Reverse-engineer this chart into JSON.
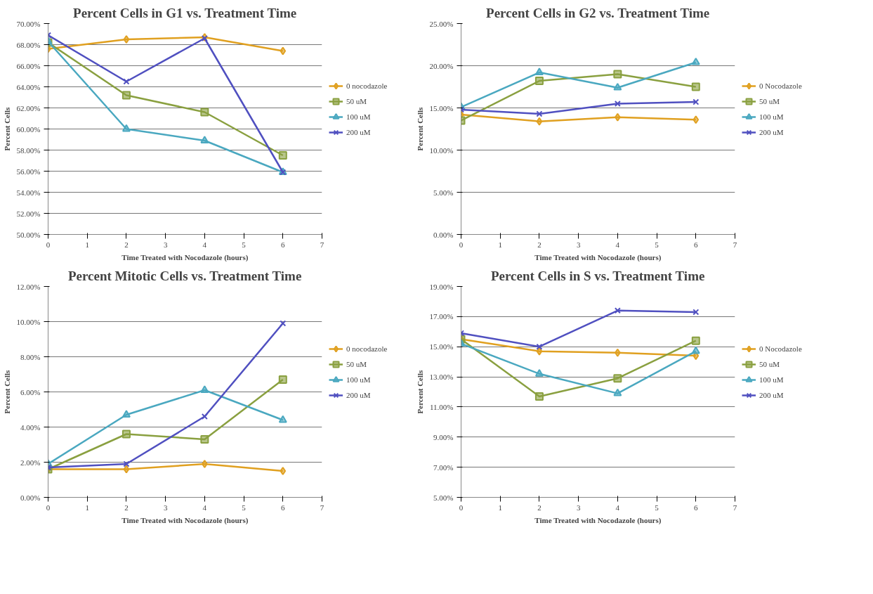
{
  "chart_data": [
    {
      "type": "line",
      "title": "Percent Cells in G1 vs. Treatment Time",
      "xlabel": "Time Treated with Nocodazole (hours)",
      "ylabel": "Percent Cells",
      "x": [
        0,
        2,
        4,
        6
      ],
      "xlim": [
        0,
        7
      ],
      "xticks": [
        0,
        1,
        2,
        3,
        4,
        5,
        6,
        7
      ],
      "ylim": [
        50,
        70
      ],
      "yticks": [
        {
          "value": 50,
          "label": "50.00%"
        },
        {
          "value": 52,
          "label": "52.00%"
        },
        {
          "value": 54,
          "label": "54.00%"
        },
        {
          "value": 56,
          "label": "56.00%"
        },
        {
          "value": 58,
          "label": "58.00%"
        },
        {
          "value": 60,
          "label": "60.00%"
        },
        {
          "value": 62,
          "label": "62.00%"
        },
        {
          "value": 64,
          "label": "64.00%"
        },
        {
          "value": 66,
          "label": "66.00%"
        },
        {
          "value": 68,
          "label": "68.00%"
        },
        {
          "value": 70,
          "label": "70.00%"
        }
      ],
      "grid": "y",
      "legend": "right",
      "series": [
        {
          "name": "0 nocodazole",
          "color": "#e0a020",
          "marker": "diamond",
          "values": [
            67.6,
            68.5,
            68.7,
            67.4
          ]
        },
        {
          "name": "50 uM",
          "color": "#8aa040",
          "marker": "square",
          "values": [
            68.2,
            63.2,
            61.6,
            57.5
          ]
        },
        {
          "name": "100 uM",
          "color": "#4aa8c0",
          "marker": "triangle",
          "values": [
            68.3,
            60.0,
            58.9,
            55.9
          ]
        },
        {
          "name": "200 uM",
          "color": "#5050c0",
          "marker": "cross",
          "values": [
            68.9,
            64.5,
            68.6,
            55.9
          ]
        }
      ]
    },
    {
      "type": "line",
      "title": "Percent Cells in G2 vs. Treatment Time",
      "xlabel": "Time Treated with Nocodazole (hours)",
      "ylabel": "Percent Cells",
      "x": [
        0,
        2,
        4,
        6
      ],
      "xlim": [
        0,
        7
      ],
      "xticks": [
        0,
        1,
        2,
        3,
        4,
        5,
        6,
        7
      ],
      "ylim": [
        0,
        25
      ],
      "yticks": [
        {
          "value": 0,
          "label": "0.00%"
        },
        {
          "value": 5,
          "label": "5.00%"
        },
        {
          "value": 10,
          "label": "10.00%"
        },
        {
          "value": 15,
          "label": "15.00%"
        },
        {
          "value": 20,
          "label": "20.00%"
        },
        {
          "value": 25,
          "label": "25.00%"
        }
      ],
      "grid": "y",
      "legend": "right",
      "series": [
        {
          "name": "0 Nocodazole",
          "color": "#e0a020",
          "marker": "diamond",
          "values": [
            14.2,
            13.4,
            13.9,
            13.6
          ]
        },
        {
          "name": "50 uM",
          "color": "#8aa040",
          "marker": "square",
          "values": [
            13.5,
            18.2,
            19.0,
            17.5
          ]
        },
        {
          "name": "100 uM",
          "color": "#4aa8c0",
          "marker": "triangle",
          "values": [
            15.1,
            19.2,
            17.4,
            20.4
          ]
        },
        {
          "name": "200 uM",
          "color": "#5050c0",
          "marker": "cross",
          "values": [
            14.8,
            14.3,
            15.5,
            15.7
          ]
        }
      ]
    },
    {
      "type": "line",
      "title": "Percent Mitotic Cells vs. Treatment Time",
      "xlabel": "Time Treated with Nocodazole (hours)",
      "ylabel": "Percent Cells",
      "x": [
        0,
        2,
        4,
        6
      ],
      "xlim": [
        0,
        7
      ],
      "xticks": [
        0,
        1,
        2,
        3,
        4,
        5,
        6,
        7
      ],
      "ylim": [
        0,
        12
      ],
      "yticks": [
        {
          "value": 0,
          "label": "0.00%"
        },
        {
          "value": 2,
          "label": "2.00%"
        },
        {
          "value": 4,
          "label": "4.00%"
        },
        {
          "value": 6,
          "label": "6.00%"
        },
        {
          "value": 8,
          "label": "8.00%"
        },
        {
          "value": 10,
          "label": "10.00%"
        },
        {
          "value": 12,
          "label": "12.00%"
        }
      ],
      "grid": "y",
      "legend": "right",
      "series": [
        {
          "name": "0 nocodazole",
          "color": "#e0a020",
          "marker": "diamond",
          "values": [
            1.6,
            1.6,
            1.9,
            1.5
          ]
        },
        {
          "name": "50 uM",
          "color": "#8aa040",
          "marker": "square",
          "values": [
            1.6,
            3.6,
            3.3,
            6.7
          ]
        },
        {
          "name": "100 uM",
          "color": "#4aa8c0",
          "marker": "triangle",
          "values": [
            1.9,
            4.7,
            6.1,
            4.4
          ]
        },
        {
          "name": "200 uM",
          "color": "#5050c0",
          "marker": "cross",
          "values": [
            1.7,
            1.9,
            4.6,
            9.9
          ]
        }
      ]
    },
    {
      "type": "line",
      "title": "Percent Cells in S vs. Treatment Time",
      "xlabel": "Time Treated with Nocodazole (hours)",
      "ylabel": "Percent Cells",
      "x": [
        0,
        2,
        4,
        6
      ],
      "xlim": [
        0,
        7
      ],
      "xticks": [
        0,
        1,
        2,
        3,
        4,
        5,
        6,
        7
      ],
      "ylim": [
        5,
        19
      ],
      "yticks": [
        {
          "value": 5,
          "label": "5.00%"
        },
        {
          "value": 7,
          "label": "7.00%"
        },
        {
          "value": 9,
          "label": "9.00%"
        },
        {
          "value": 11,
          "label": "11.00%"
        },
        {
          "value": 13,
          "label": "13.00%"
        },
        {
          "value": 15,
          "label": "15.00%"
        },
        {
          "value": 17,
          "label": "17.00%"
        },
        {
          "value": 19,
          "label": "19.00%"
        }
      ],
      "grid": "y",
      "legend": "right",
      "series": [
        {
          "name": "0 Nocodazole",
          "color": "#e0a020",
          "marker": "diamond",
          "values": [
            15.5,
            14.7,
            14.6,
            14.4
          ]
        },
        {
          "name": "50 uM",
          "color": "#8aa040",
          "marker": "square",
          "values": [
            15.5,
            11.7,
            12.9,
            15.4
          ]
        },
        {
          "name": "100 uM",
          "color": "#4aa8c0",
          "marker": "triangle",
          "values": [
            15.2,
            13.2,
            11.9,
            14.7
          ]
        },
        {
          "name": "200 uM",
          "color": "#5050c0",
          "marker": "cross",
          "values": [
            15.9,
            15.0,
            17.4,
            17.3
          ]
        }
      ]
    }
  ]
}
